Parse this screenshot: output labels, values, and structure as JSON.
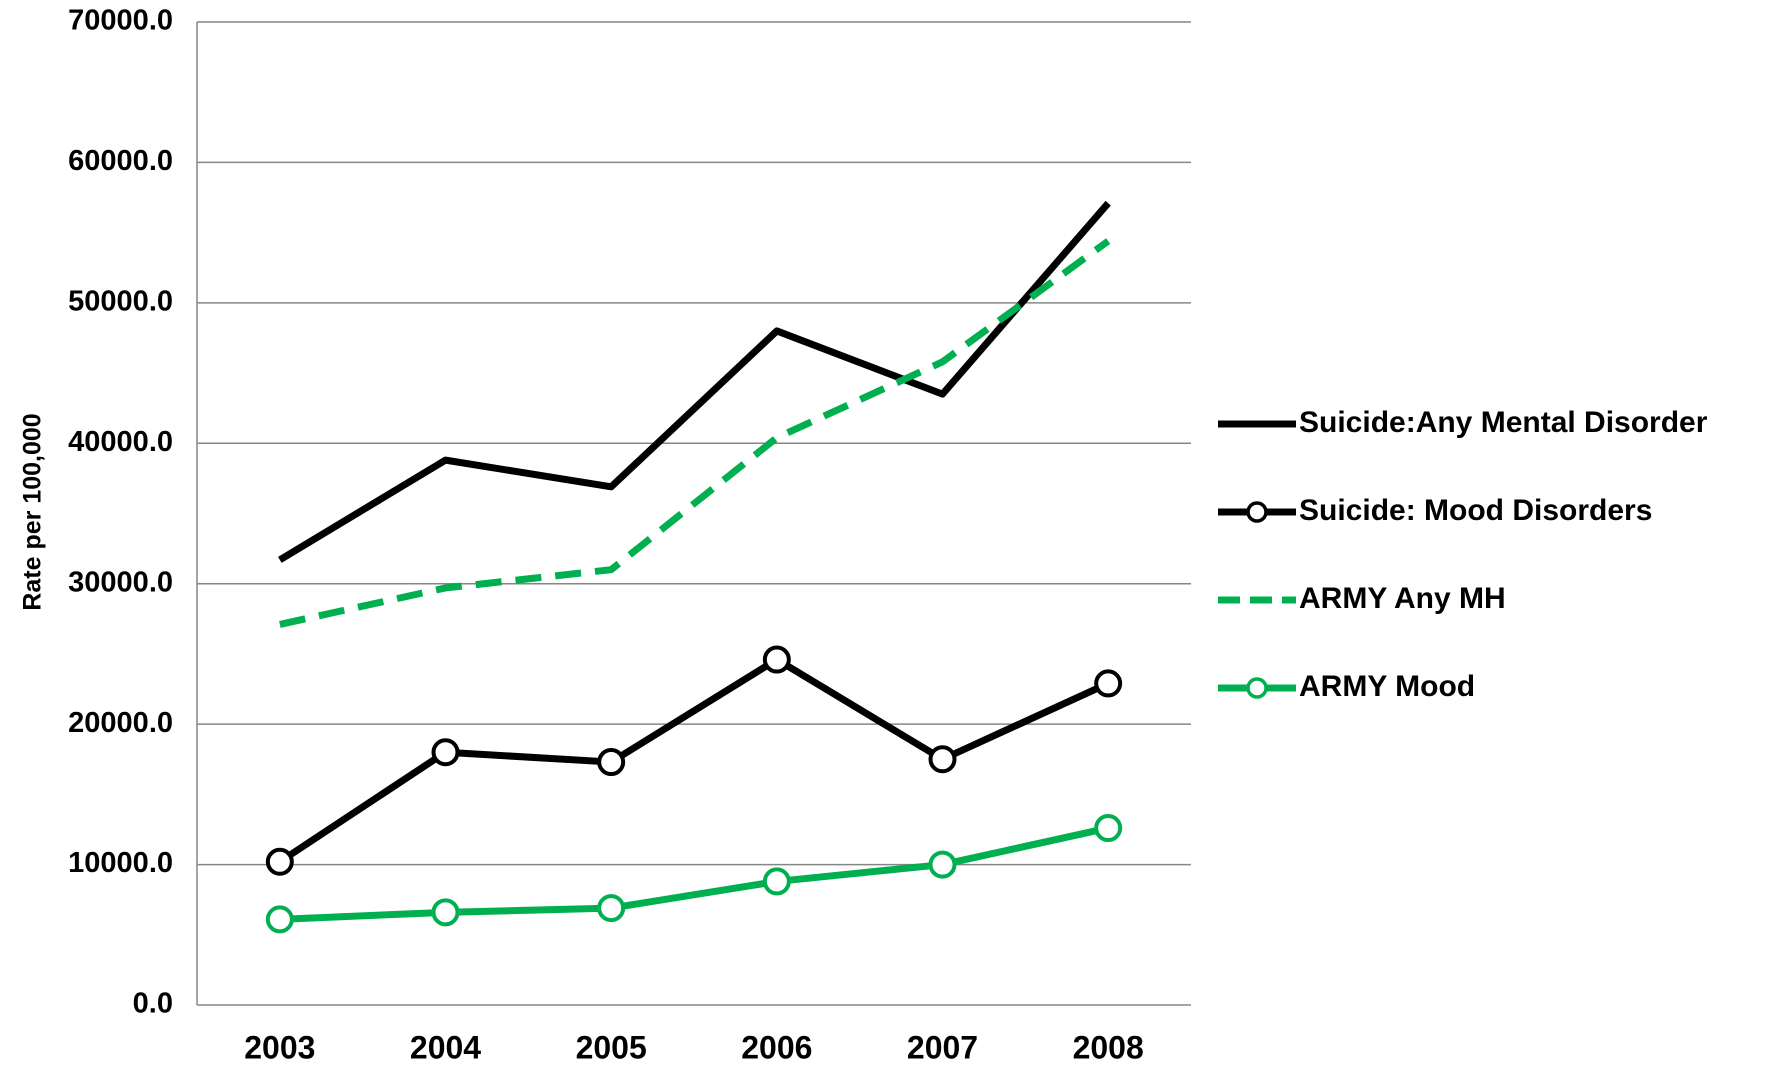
{
  "chart_data": {
    "type": "line",
    "y_label": "Rate per 100,000",
    "categories": [
      "2003",
      "2004",
      "2005",
      "2006",
      "2007",
      "2008"
    ],
    "series": [
      {
        "name": "Suicide:Any Mental Disorder",
        "color": "#000000",
        "style": "solid",
        "markers": false,
        "values": [
          31700,
          38800,
          36900,
          48000,
          43500,
          57100
        ]
      },
      {
        "name": "Suicide: Mood Disorders",
        "color": "#000000",
        "style": "solid",
        "markers": true,
        "values": [
          10200,
          18000,
          17300,
          24600,
          17500,
          22900
        ]
      },
      {
        "name": "ARMY Any MH",
        "color": "#00b050",
        "style": "dashed",
        "markers": false,
        "values": [
          27100,
          29700,
          31000,
          40400,
          45800,
          54400
        ]
      },
      {
        "name": "ARMY Mood",
        "color": "#00b050",
        "style": "solid",
        "markers": true,
        "values": [
          6100,
          6600,
          6900,
          8800,
          10000,
          12600
        ]
      }
    ],
    "ylim": [
      0,
      70000
    ],
    "yticks": [
      {
        "value": 0,
        "label": "0.0"
      },
      {
        "value": 10000,
        "label": "10000.0"
      },
      {
        "value": 20000,
        "label": "20000.0"
      },
      {
        "value": 30000,
        "label": "30000.0"
      },
      {
        "value": 40000,
        "label": "40000.0"
      },
      {
        "value": 50000,
        "label": "50000.0"
      },
      {
        "value": 60000,
        "label": "60000.0"
      },
      {
        "value": 70000,
        "label": "70000.0"
      }
    ],
    "grid": true,
    "legend": "right"
  }
}
